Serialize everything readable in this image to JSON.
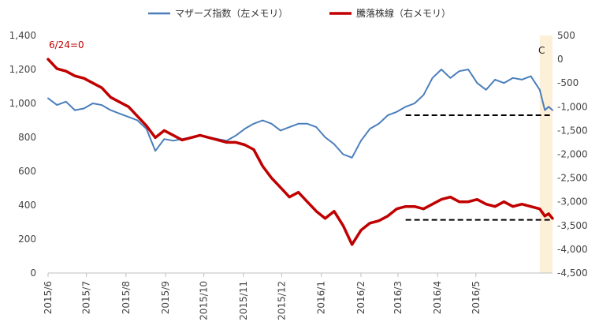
{
  "chart_data": {
    "type": "line",
    "legend": {
      "placement": "top-center",
      "entries": [
        "マザーズ指数（左メモリ）",
        "騰落株線（右メモリ）"
      ]
    },
    "annotation_origin": "6/24=0",
    "annotation_marker": "C",
    "x": [
      "2015-06-01",
      "2015-06-08",
      "2015-06-15",
      "2015-06-22",
      "2015-06-29",
      "2015-07-06",
      "2015-07-13",
      "2015-07-20",
      "2015-07-27",
      "2015-08-03",
      "2015-08-10",
      "2015-08-17",
      "2015-08-24",
      "2015-08-31",
      "2015-09-07",
      "2015-09-14",
      "2015-09-21",
      "2015-09-28",
      "2015-10-05",
      "2015-10-12",
      "2015-10-19",
      "2015-10-26",
      "2015-11-02",
      "2015-11-09",
      "2015-11-16",
      "2015-11-23",
      "2015-11-30",
      "2015-12-07",
      "2015-12-14",
      "2015-12-21",
      "2015-12-28",
      "2016-01-04",
      "2016-01-11",
      "2016-01-18",
      "2016-01-25",
      "2016-02-01",
      "2016-02-08",
      "2016-02-15",
      "2016-02-22",
      "2016-02-29",
      "2016-03-07",
      "2016-03-14",
      "2016-03-21",
      "2016-03-28",
      "2016-04-04",
      "2016-04-11",
      "2016-04-18",
      "2016-04-25",
      "2016-05-02",
      "2016-05-09",
      "2016-05-16",
      "2016-05-23",
      "2016-05-30",
      "2016-06-06",
      "2016-06-13",
      "2016-06-20",
      "2016-06-24",
      "2016-06-27",
      "2016-06-30"
    ],
    "x_tick_labels": [
      "2015/6",
      "2015/7",
      "2015/8",
      "2015/9",
      "2015/10",
      "2015/11",
      "2015/12",
      "2016/1",
      "2016/2",
      "2016/3",
      "2016/4",
      "2016/5"
    ],
    "y_left": {
      "ylim": [
        0,
        1400
      ],
      "ticks": [
        "0",
        "200",
        "400",
        "600",
        "800",
        "1,000",
        "1,200",
        "1,400"
      ]
    },
    "y_right": {
      "ylim": [
        -4500,
        500
      ],
      "ticks": [
        "-4,500",
        "-4,000",
        "-3,500",
        "-3,000",
        "-2,500",
        "-2,000",
        "-1,500",
        "-1,000",
        "-500",
        "0",
        "500"
      ]
    },
    "series": [
      {
        "name": "マザーズ指数（左メモリ）",
        "axis": "left",
        "color": "#4a7ebb",
        "values": [
          1030,
          990,
          1010,
          960,
          970,
          1000,
          990,
          960,
          940,
          920,
          900,
          850,
          720,
          790,
          780,
          790,
          800,
          810,
          800,
          790,
          780,
          810,
          850,
          880,
          900,
          880,
          840,
          860,
          880,
          880,
          860,
          800,
          760,
          700,
          680,
          780,
          850,
          880,
          930,
          950,
          980,
          1000,
          1050,
          1150,
          1200,
          1150,
          1190,
          1200,
          1120,
          1080,
          1140,
          1120,
          1150,
          1140,
          1160,
          1080,
          960,
          980,
          960
        ]
      },
      {
        "name": "騰落株線（右メモリ）",
        "axis": "right",
        "color": "#c00000",
        "values": [
          0,
          -200,
          -250,
          -350,
          -400,
          -500,
          -600,
          -800,
          -900,
          -1000,
          -1200,
          -1400,
          -1650,
          -1500,
          -1600,
          -1700,
          -1650,
          -1600,
          -1650,
          -1700,
          -1750,
          -1750,
          -1800,
          -1900,
          -2250,
          -2500,
          -2700,
          -2900,
          -2800,
          -3000,
          -3200,
          -3350,
          -3200,
          -3500,
          -3900,
          -3600,
          -3450,
          -3400,
          -3300,
          -3150,
          -3100,
          -3100,
          -3150,
          -3050,
          -2950,
          -2900,
          -3000,
          -3000,
          -2950,
          -3050,
          -3100,
          -3000,
          -3100,
          -3050,
          -3100,
          -3150,
          -3300,
          -3250,
          -3350
        ]
      }
    ],
    "reference_lines": [
      {
        "axis": "left",
        "value": 930,
        "from": "2016-03-07",
        "to": "2016-06-30",
        "style": "dashed",
        "color": "#000000"
      },
      {
        "axis": "right",
        "value": -3380,
        "from": "2016-03-07",
        "to": "2016-06-30",
        "style": "dashed",
        "color": "#000000"
      }
    ],
    "highlight_band": {
      "from": "2016-06-20",
      "to": "2016-06-30",
      "color": "#fdf0d8"
    },
    "colors": {
      "axis": "#bfbfbf",
      "tick_text": "#444444",
      "annotation_text": "#c00000"
    },
    "grid": false
  }
}
